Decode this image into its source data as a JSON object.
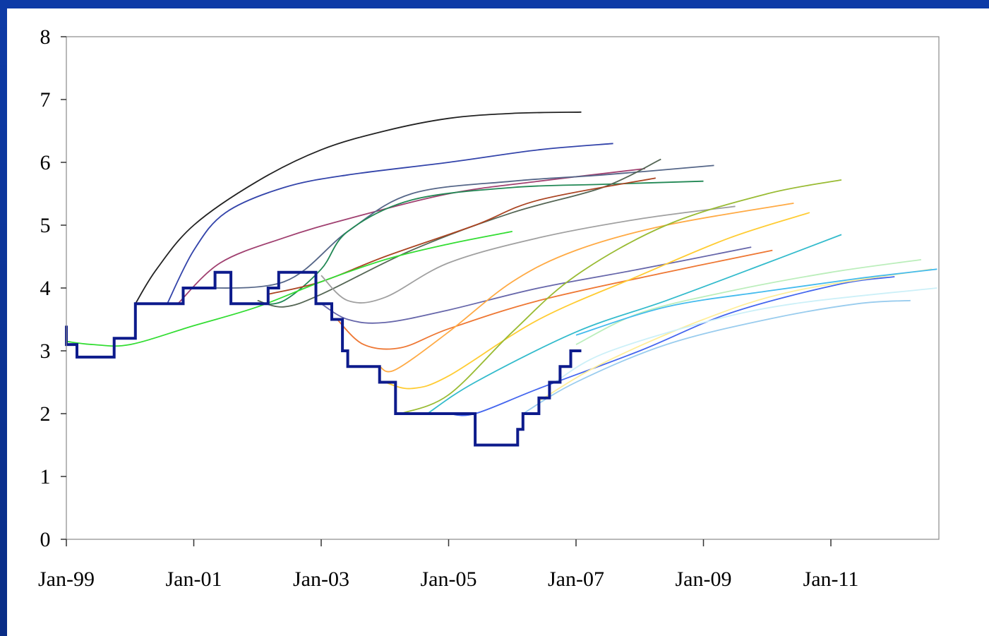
{
  "chart_data": {
    "type": "line",
    "title": "",
    "xlabel": "",
    "ylabel": "",
    "ylim": [
      0,
      8
    ],
    "yticks": [
      "0",
      "1",
      "2",
      "3",
      "4",
      "5",
      "6",
      "7",
      "8"
    ],
    "xticks": [
      "Jan-99",
      "Jan-01",
      "Jan-03",
      "Jan-05",
      "Jan-07",
      "Jan-09",
      "Jan-11"
    ],
    "x_axis_start": "1999-01",
    "x_axis_end": "2012-09",
    "grid": false,
    "legend": "none",
    "policy_rate": {
      "color": "#0d1b8c",
      "points": [
        [
          "1999-01",
          3.4
        ],
        [
          "1999-01",
          3.1
        ],
        [
          "1999-03",
          3.1
        ],
        [
          "1999-03",
          2.9
        ],
        [
          "1999-10",
          2.9
        ],
        [
          "1999-10",
          3.2
        ],
        [
          "2000-02",
          3.2
        ],
        [
          "2000-02",
          3.75
        ],
        [
          "2000-11",
          3.75
        ],
        [
          "2000-11",
          4.0
        ],
        [
          "2001-05",
          4.0
        ],
        [
          "2001-05",
          4.25
        ],
        [
          "2001-08",
          4.25
        ],
        [
          "2001-08",
          3.75
        ],
        [
          "2002-03",
          3.75
        ],
        [
          "2002-03",
          4.0
        ],
        [
          "2002-05",
          4.0
        ],
        [
          "2002-05",
          4.25
        ],
        [
          "2002-12",
          4.25
        ],
        [
          "2002-12",
          3.75
        ],
        [
          "2003-03",
          3.75
        ],
        [
          "2003-03",
          3.5
        ],
        [
          "2003-05",
          3.5
        ],
        [
          "2003-05",
          3.0
        ],
        [
          "2003-06",
          3.0
        ],
        [
          "2003-06",
          2.75
        ],
        [
          "2003-12",
          2.75
        ],
        [
          "2003-12",
          2.5
        ],
        [
          "2004-03",
          2.5
        ],
        [
          "2004-03",
          2.0
        ],
        [
          "2005-06",
          2.0
        ],
        [
          "2005-06",
          1.5
        ],
        [
          "2006-02",
          1.5
        ],
        [
          "2006-02",
          1.75
        ],
        [
          "2006-03",
          1.75
        ],
        [
          "2006-03",
          2.0
        ],
        [
          "2006-06",
          2.0
        ],
        [
          "2006-06",
          2.25
        ],
        [
          "2006-08",
          2.25
        ],
        [
          "2006-08",
          2.5
        ],
        [
          "2006-10",
          2.5
        ],
        [
          "2006-10",
          2.75
        ],
        [
          "2006-12",
          2.75
        ],
        [
          "2006-12",
          3.0
        ],
        [
          "2007-02",
          3.0
        ]
      ]
    },
    "series": [
      {
        "color": "#222222",
        "points": [
          [
            "2000-02",
            3.75
          ],
          [
            "2000-06",
            4.3
          ],
          [
            "2001-01",
            5.0
          ],
          [
            "2002-01",
            5.7
          ],
          [
            "2003-01",
            6.2
          ],
          [
            "2004-01",
            6.5
          ],
          [
            "2005-01",
            6.7
          ],
          [
            "2006-01",
            6.78
          ],
          [
            "2007-02",
            6.8
          ]
        ]
      },
      {
        "color": "#3344aa",
        "points": [
          [
            "2000-08",
            3.75
          ],
          [
            "2001-01",
            4.6
          ],
          [
            "2001-07",
            5.2
          ],
          [
            "2002-06",
            5.6
          ],
          [
            "2003-06",
            5.8
          ],
          [
            "2005-01",
            6.0
          ],
          [
            "2006-06",
            6.2
          ],
          [
            "2007-08",
            6.3
          ]
        ]
      },
      {
        "color": "#a04070",
        "points": [
          [
            "2000-10",
            3.75
          ],
          [
            "2001-06",
            4.4
          ],
          [
            "2002-06",
            4.8
          ],
          [
            "2003-06",
            5.1
          ],
          [
            "2005-01",
            5.5
          ],
          [
            "2006-06",
            5.7
          ],
          [
            "2008-02",
            5.9
          ]
        ]
      },
      {
        "color": "#556688",
        "points": [
          [
            "2001-01",
            4.0
          ],
          [
            "2002-06",
            4.1
          ],
          [
            "2003-06",
            4.9
          ],
          [
            "2004-06",
            5.5
          ],
          [
            "2006-01",
            5.7
          ],
          [
            "2007-06",
            5.8
          ],
          [
            "2009-03",
            5.95
          ]
        ]
      },
      {
        "color": "#228855",
        "points": [
          [
            "2002-01",
            3.75
          ],
          [
            "2002-06",
            3.8
          ],
          [
            "2003-01",
            4.3
          ],
          [
            "2003-06",
            4.9
          ],
          [
            "2004-06",
            5.4
          ],
          [
            "2006-01",
            5.6
          ],
          [
            "2007-06",
            5.65
          ],
          [
            "2009-01",
            5.7
          ]
        ]
      },
      {
        "color": "#556655",
        "points": [
          [
            "2002-01",
            3.8
          ],
          [
            "2002-06",
            3.7
          ],
          [
            "2003-01",
            3.9
          ],
          [
            "2004-06",
            4.6
          ],
          [
            "2006-01",
            5.2
          ],
          [
            "2007-06",
            5.6
          ],
          [
            "2008-05",
            6.05
          ]
        ]
      },
      {
        "color": "#aa4422",
        "points": [
          [
            "2002-03",
            3.9
          ],
          [
            "2003-01",
            4.1
          ],
          [
            "2004-01",
            4.5
          ],
          [
            "2005-06",
            5.0
          ],
          [
            "2006-06",
            5.4
          ],
          [
            "2008-04",
            5.75
          ]
        ]
      },
      {
        "color": "#33dd33",
        "points": [
          [
            "1999-01",
            3.15
          ],
          [
            "1999-06",
            3.1
          ],
          [
            "2000-01",
            3.1
          ],
          [
            "2001-01",
            3.4
          ],
          [
            "2002-01",
            3.7
          ],
          [
            "2003-01",
            4.1
          ],
          [
            "2004-01",
            4.45
          ],
          [
            "2005-01",
            4.7
          ],
          [
            "2006-01",
            4.9
          ]
        ]
      },
      {
        "color": "#a0a0a0",
        "points": [
          [
            "2003-01",
            4.2
          ],
          [
            "2003-06",
            3.8
          ],
          [
            "2004-01",
            3.85
          ],
          [
            "2005-01",
            4.4
          ],
          [
            "2006-06",
            4.8
          ],
          [
            "2008-01",
            5.1
          ],
          [
            "2009-07",
            5.3
          ]
        ]
      },
      {
        "color": "#6666aa",
        "points": [
          [
            "2003-01",
            3.75
          ],
          [
            "2003-06",
            3.5
          ],
          [
            "2004-01",
            3.45
          ],
          [
            "2005-01",
            3.65
          ],
          [
            "2006-06",
            4.0
          ],
          [
            "2008-01",
            4.3
          ],
          [
            "2009-10",
            4.65
          ]
        ]
      },
      {
        "color": "#ee7733",
        "points": [
          [
            "2003-04",
            3.5
          ],
          [
            "2003-09",
            3.1
          ],
          [
            "2004-04",
            3.05
          ],
          [
            "2005-01",
            3.35
          ],
          [
            "2006-06",
            3.8
          ],
          [
            "2008-06",
            4.25
          ],
          [
            "2010-02",
            4.6
          ]
        ]
      },
      {
        "color": "#ffaa44",
        "points": [
          [
            "2003-12",
            2.75
          ],
          [
            "2004-03",
            2.7
          ],
          [
            "2005-01",
            3.3
          ],
          [
            "2006-01",
            4.1
          ],
          [
            "2007-01",
            4.6
          ],
          [
            "2008-06",
            5.0
          ],
          [
            "2010-06",
            5.35
          ]
        ]
      },
      {
        "color": "#ffcc33",
        "points": [
          [
            "2004-01",
            2.5
          ],
          [
            "2004-06",
            2.4
          ],
          [
            "2005-01",
            2.6
          ],
          [
            "2006-06",
            3.5
          ],
          [
            "2008-01",
            4.2
          ],
          [
            "2009-06",
            4.8
          ],
          [
            "2010-09",
            5.2
          ]
        ]
      },
      {
        "color": "#99bb33",
        "points": [
          [
            "2004-04",
            2.0
          ],
          [
            "2005-01",
            2.3
          ],
          [
            "2006-01",
            3.3
          ],
          [
            "2007-01",
            4.2
          ],
          [
            "2008-06",
            5.0
          ],
          [
            "2010-01",
            5.5
          ],
          [
            "2011-03",
            5.72
          ]
        ]
      },
      {
        "color": "#33bbcc",
        "points": [
          [
            "2004-09",
            2.0
          ],
          [
            "2005-06",
            2.5
          ],
          [
            "2007-01",
            3.3
          ],
          [
            "2008-06",
            3.8
          ],
          [
            "2010-01",
            4.4
          ],
          [
            "2011-03",
            4.85
          ]
        ]
      },
      {
        "color": "#4466ee",
        "points": [
          [
            "2005-01",
            2.0
          ],
          [
            "2005-06",
            2.0
          ],
          [
            "2006-06",
            2.4
          ],
          [
            "2008-01",
            3.0
          ],
          [
            "2009-06",
            3.6
          ],
          [
            "2011-02",
            4.05
          ],
          [
            "2012-01",
            4.18
          ]
        ]
      },
      {
        "color": "#99ccee",
        "points": [
          [
            "2006-03",
            2.0
          ],
          [
            "2007-01",
            2.5
          ],
          [
            "2008-06",
            3.1
          ],
          [
            "2010-01",
            3.5
          ],
          [
            "2011-06",
            3.75
          ],
          [
            "2012-04",
            3.8
          ]
        ]
      },
      {
        "color": "#ffee99",
        "points": [
          [
            "2006-06",
            2.2
          ],
          [
            "2007-06",
            2.8
          ],
          [
            "2009-01",
            3.5
          ],
          [
            "2010-06",
            3.95
          ],
          [
            "2012-08",
            4.3
          ]
        ]
      },
      {
        "color": "#ccf0f8",
        "points": [
          [
            "2006-09",
            2.5
          ],
          [
            "2007-06",
            2.95
          ],
          [
            "2009-01",
            3.45
          ],
          [
            "2010-06",
            3.75
          ],
          [
            "2012-09",
            4.0
          ]
        ]
      },
      {
        "color": "#bbeebb",
        "points": [
          [
            "2007-01",
            3.1
          ],
          [
            "2008-01",
            3.6
          ],
          [
            "2009-06",
            3.95
          ],
          [
            "2011-01",
            4.25
          ],
          [
            "2012-06",
            4.45
          ]
        ]
      },
      {
        "color": "#44bbee",
        "points": [
          [
            "2007-01",
            3.25
          ],
          [
            "2008-06",
            3.7
          ],
          [
            "2010-01",
            3.95
          ],
          [
            "2011-06",
            4.15
          ],
          [
            "2012-09",
            4.3
          ]
        ]
      }
    ]
  }
}
